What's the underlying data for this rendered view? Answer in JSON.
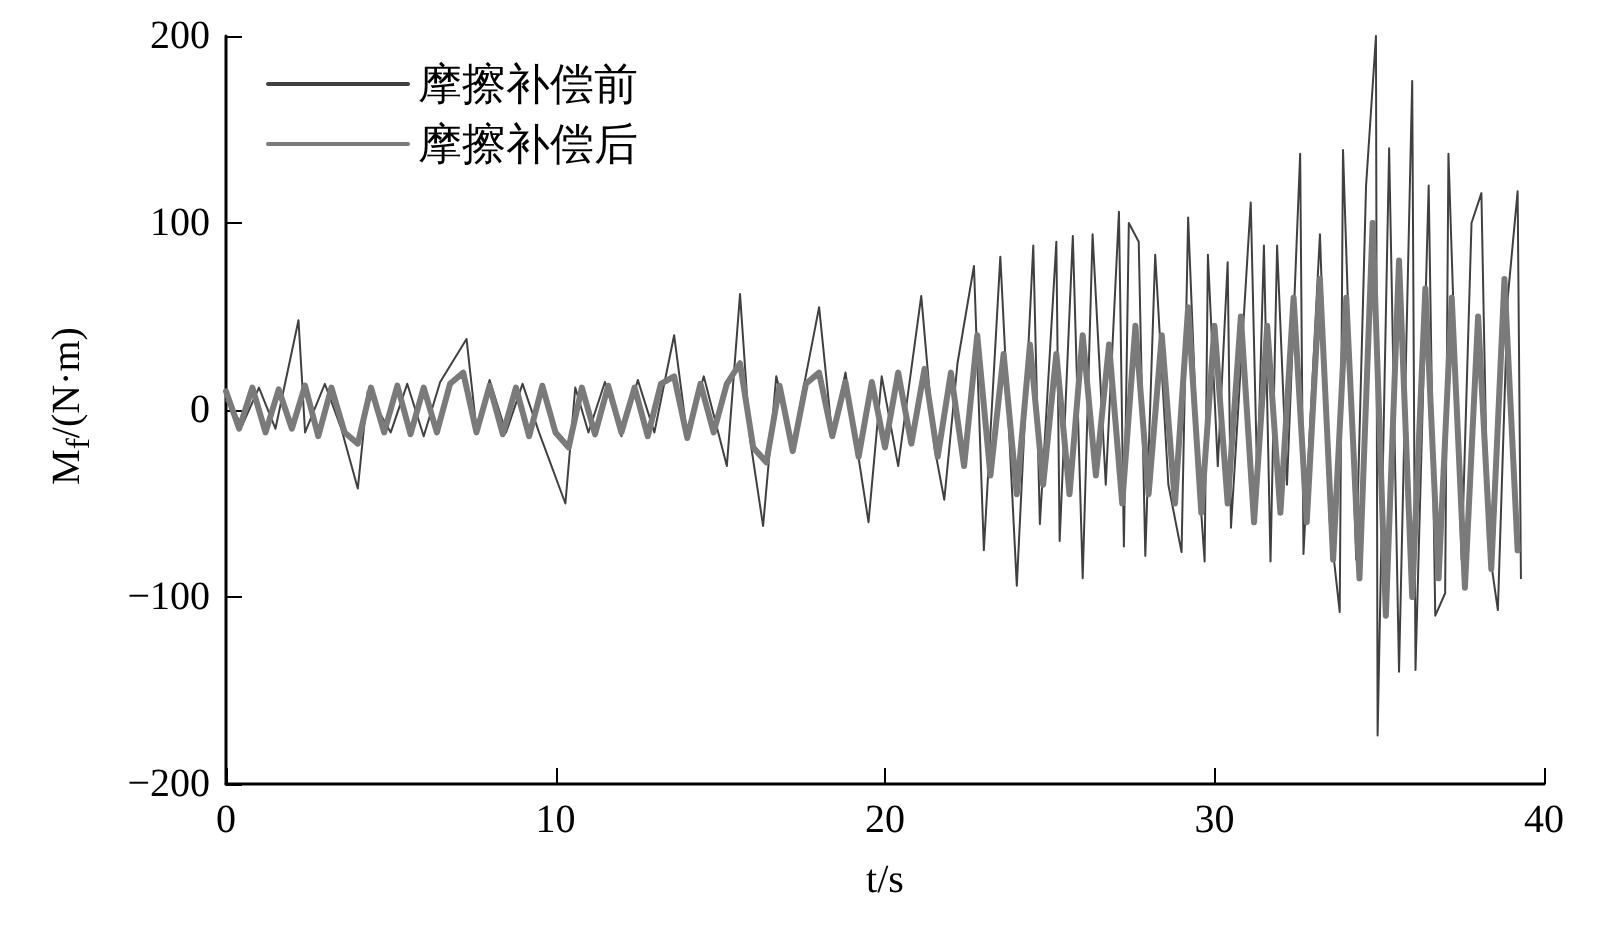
{
  "chart_data": {
    "type": "line",
    "xlabel": "t/s",
    "ylabel": "M$_{f}$/(N·m)",
    "xlim": [
      0,
      40
    ],
    "xticks": [
      0,
      10,
      20,
      30,
      40
    ],
    "ylim": [
      -200,
      200
    ],
    "yticks": [
      -200,
      -100,
      0,
      100,
      200
    ],
    "grid": false,
    "legend": "top left",
    "marker": "none",
    "line_style": "solid",
    "series": [
      {
        "name": "摩擦补偿前",
        "color": "#404040",
        "x": [
          0,
          0.5,
          1,
          1.5,
          2.2,
          2.4,
          3,
          3.5,
          4,
          4.3,
          5,
          5.5,
          6,
          6.5,
          7.3,
          7.6,
          8,
          8.5,
          9,
          9.5,
          10.3,
          10.6,
          11,
          11.5,
          12,
          12.5,
          13,
          13.6,
          14,
          14.5,
          15.2,
          15.6,
          15.9,
          16.3,
          16.7,
          17.2,
          18,
          18.4,
          18.8,
          19.5,
          19.9,
          20.4,
          21.1,
          21.5,
          21.8,
          22.2,
          22.7,
          23,
          23.5,
          24,
          24.5,
          24.7,
          25.2,
          25.3,
          25.7,
          26,
          26.3,
          26.7,
          27.1,
          27.25,
          27.4,
          27.7,
          27.9,
          28.2,
          28.6,
          29,
          29.2,
          29.5,
          29.7,
          29.8,
          30.1,
          30.4,
          30.5,
          31.1,
          31.3,
          31.5,
          31.7,
          31.9,
          32.2,
          32.6,
          32.7,
          33.2,
          33.5,
          33.8,
          33.9,
          34.3,
          34.6,
          34.9,
          34.95,
          35.3,
          35.6,
          36,
          36.1,
          36.5,
          36.7,
          37,
          37.1,
          37.5,
          37.8,
          38.1,
          38.3,
          38.6,
          38.9,
          39.2,
          39.3
        ],
        "values": [
          5,
          -8,
          12,
          -10,
          48,
          -12,
          14,
          -10,
          -42,
          10,
          -12,
          14,
          -14,
          15,
          38,
          -10,
          16,
          -12,
          14,
          -12,
          -50,
          12,
          -12,
          15,
          -14,
          16,
          -12,
          40,
          -14,
          18,
          -30,
          62,
          -15,
          -62,
          18,
          -18,
          55,
          -14,
          20,
          -60,
          18,
          -30,
          61,
          -20,
          -48,
          25,
          77,
          -75,
          82,
          -94,
          88,
          -61,
          90,
          -70,
          93,
          -90,
          94,
          -40,
          106,
          -73,
          100,
          90,
          -78,
          83,
          -40,
          -76,
          103,
          -30,
          -81,
          83,
          -30,
          79,
          -63,
          111,
          -40,
          88,
          -81,
          88,
          -40,
          137,
          -77,
          94,
          -60,
          -108,
          139,
          -80,
          120,
          200,
          -174,
          140,
          -140,
          176,
          -139,
          120,
          -110,
          -98,
          137,
          -80,
          100,
          116,
          -70,
          -107,
          60,
          117,
          -90
        ]
      },
      {
        "name": "摩擦补偿后",
        "color": "#7a7a7a",
        "x": [
          0,
          0.4,
          0.8,
          1.2,
          1.6,
          2,
          2.4,
          2.8,
          3.2,
          3.6,
          4,
          4.4,
          4.8,
          5.2,
          5.6,
          6,
          6.4,
          6.8,
          7.2,
          7.6,
          8,
          8.4,
          8.8,
          9.2,
          9.6,
          10,
          10.4,
          10.8,
          11.2,
          11.6,
          12,
          12.4,
          12.8,
          13.2,
          13.6,
          14,
          14.4,
          14.8,
          15.2,
          15.6,
          16,
          16.4,
          16.8,
          17.2,
          17.6,
          18,
          18.4,
          18.8,
          19.2,
          19.6,
          20,
          20.4,
          20.8,
          21.2,
          21.6,
          22,
          22.4,
          22.8,
          23.2,
          23.6,
          24,
          24.4,
          24.8,
          25.2,
          25.6,
          26,
          26.4,
          26.8,
          27.2,
          27.6,
          28,
          28.4,
          28.8,
          29.2,
          29.6,
          30,
          30.4,
          30.8,
          31.2,
          31.6,
          32,
          32.4,
          32.8,
          33.2,
          33.6,
          34,
          34.4,
          34.8,
          35.2,
          35.6,
          36,
          36.4,
          36.8,
          37.2,
          37.6,
          38,
          38.4,
          38.8,
          39.2
        ],
        "values": [
          10,
          -10,
          12,
          -12,
          11,
          -10,
          13,
          -14,
          12,
          -12,
          -18,
          12,
          -12,
          13,
          -13,
          12,
          -12,
          14,
          20,
          -12,
          13,
          -13,
          12,
          -14,
          13,
          -12,
          -20,
          12,
          -13,
          13,
          -12,
          12,
          -14,
          14,
          18,
          -15,
          14,
          -12,
          14,
          25,
          -20,
          -28,
          13,
          -22,
          14,
          20,
          -14,
          15,
          -25,
          15,
          -20,
          20,
          -18,
          22,
          -25,
          20,
          -30,
          40,
          -35,
          30,
          -45,
          35,
          -40,
          30,
          -45,
          40,
          -35,
          35,
          -50,
          45,
          -45,
          40,
          -50,
          55,
          -55,
          45,
          -50,
          50,
          -60,
          45,
          -55,
          60,
          -60,
          70,
          -80,
          60,
          -90,
          100,
          -110,
          80,
          -100,
          65,
          -90,
          60,
          -95,
          50,
          -85,
          70,
          -75
        ]
      }
    ]
  }
}
